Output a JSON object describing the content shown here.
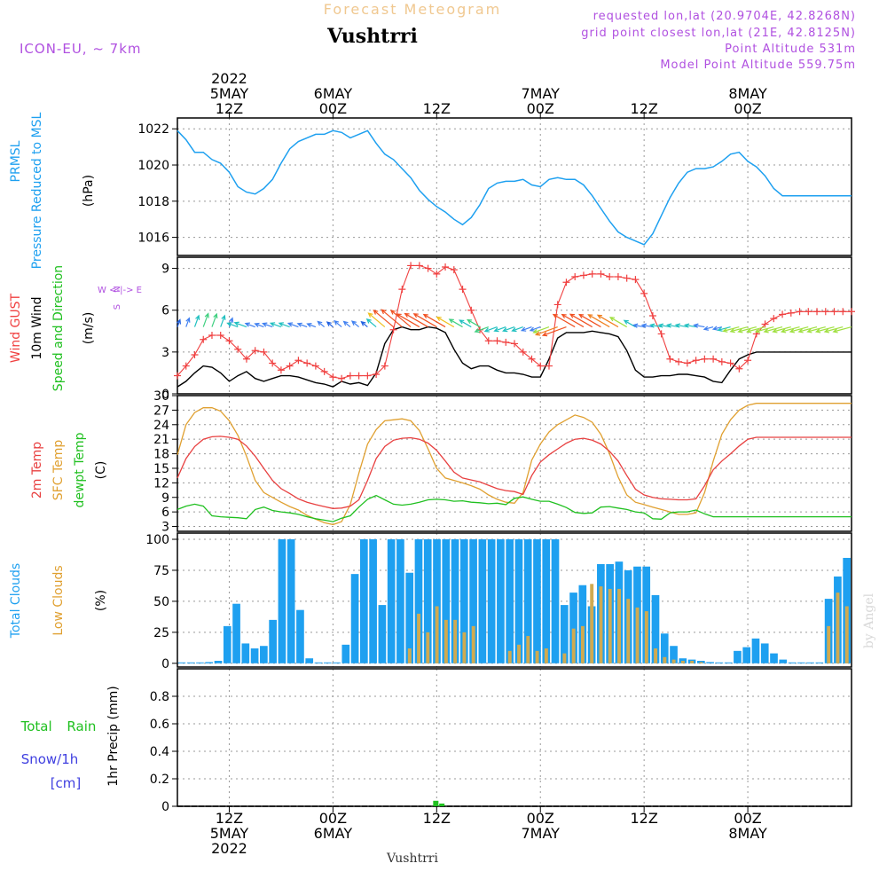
{
  "header": {
    "product_title": "Forecast Meteogram",
    "location": "Vushtrri",
    "model": "ICON-EU, ~ 7km",
    "requested": "requested lon,lat (20.9704E, 42.8268N)",
    "grid_point": "grid point closest lon,lat (21E, 42.8125N)",
    "point_altitude": "Point Altitude 531m",
    "model_altitude": "Model Point Altitude 559.75m",
    "footer_location": "Vushtrri",
    "watermark": "by Angel"
  },
  "colors": {
    "pressure": "#1ea0f0",
    "gust": "#f04040",
    "wind": "#000000",
    "temp": "#e84040",
    "sfc": "#e0a030",
    "dew": "#20c020",
    "total_cloud": "#1ea0f0",
    "low_cloud": "#d0aa50",
    "rain": "#20c020",
    "snow": "#4040e0",
    "meta": "#b050e0",
    "title_faded": "#f0c890"
  },
  "time_axis": {
    "top": [
      {
        "h": 12,
        "lines": [
          "2022",
          "5MAY",
          "12Z"
        ]
      },
      {
        "h": 24,
        "lines": [
          "6MAY",
          "00Z"
        ]
      },
      {
        "h": 36,
        "lines": [
          "12Z"
        ]
      },
      {
        "h": 48,
        "lines": [
          "7MAY",
          "00Z"
        ]
      },
      {
        "h": 60,
        "lines": [
          "12Z"
        ]
      },
      {
        "h": 72,
        "lines": [
          "8MAY",
          "00Z"
        ]
      }
    ],
    "bottom": [
      {
        "h": 12,
        "lines": [
          "12Z",
          "5MAY",
          "2022"
        ]
      },
      {
        "h": 24,
        "lines": [
          "00Z",
          "6MAY"
        ]
      },
      {
        "h": 36,
        "lines": [
          "12Z"
        ]
      },
      {
        "h": 48,
        "lines": [
          "00Z",
          "7MAY"
        ]
      },
      {
        "h": 60,
        "lines": [
          "12Z"
        ]
      },
      {
        "h": 72,
        "lines": [
          "00Z",
          "8MAY"
        ]
      }
    ]
  },
  "chart_data": [
    {
      "type": "line",
      "name": "pressure",
      "ylabels": [
        "PRMSL",
        "Pressure Reduced to MSL",
        "(hPa)"
      ],
      "ylim": [
        1015,
        1022.6
      ],
      "yticks": [
        1016,
        1018,
        1020,
        1022
      ],
      "x": [
        6,
        7,
        8,
        9,
        10,
        11,
        12,
        13,
        14,
        15,
        16,
        17,
        18,
        19,
        20,
        21,
        22,
        23,
        24,
        25,
        26,
        27,
        28,
        29,
        30,
        31,
        32,
        33,
        34,
        35,
        36,
        37,
        38,
        39,
        40,
        41,
        42,
        43,
        44,
        45,
        46,
        47,
        48,
        49,
        50,
        51,
        52,
        53,
        54,
        55,
        56,
        57,
        58,
        59,
        60,
        61,
        62,
        63,
        64,
        65,
        66,
        67,
        68,
        69,
        70,
        71,
        72,
        73,
        74,
        75,
        76,
        77,
        78,
        79,
        80,
        81,
        82,
        83,
        84
      ],
      "values": [
        1021.9,
        1021.4,
        1020.7,
        1020.7,
        1020.3,
        1020.1,
        1019.6,
        1018.8,
        1018.5,
        1018.4,
        1018.7,
        1019.2,
        1020.1,
        1020.9,
        1021.3,
        1021.5,
        1021.7,
        1021.7,
        1021.9,
        1021.8,
        1021.5,
        1021.7,
        1021.9,
        1021.2,
        1020.6,
        1020.3,
        1019.8,
        1019.3,
        1018.6,
        1018.1,
        1017.7,
        1017.4,
        1017.0,
        1016.7,
        1017.1,
        1017.8,
        1018.7,
        1019.0,
        1019.1,
        1019.1,
        1019.2,
        1018.9,
        1018.8,
        1019.2,
        1019.3,
        1019.2,
        1019.2,
        1018.9,
        1018.3,
        1017.6,
        1016.9,
        1016.3,
        1016.0,
        1015.8,
        1015.6,
        1016.2,
        1017.2,
        1018.2,
        1019.0,
        1019.6,
        1019.8,
        1019.8,
        1019.9,
        1020.2,
        1020.6,
        1020.7,
        1020.2,
        1019.9,
        1019.4,
        1018.7,
        1018.3,
        1018.3,
        1018.3,
        1018.3,
        1018.3,
        1018.3,
        1018.3,
        1018.3,
        1018.3
      ]
    },
    {
      "type": "line",
      "name": "wind",
      "ylabels": [
        "Wind GUST",
        "10m Wind",
        "Speed and Direction",
        "(m/s)"
      ],
      "compass": [
        "N",
        "W <-|-> E",
        "S"
      ],
      "ylim": [
        0,
        9.8
      ],
      "yticks": [
        0,
        3,
        6,
        9
      ],
      "series": [
        {
          "name": "gust",
          "values": [
            1.3,
            2.0,
            2.8,
            3.9,
            4.2,
            4.2,
            3.8,
            3.2,
            2.5,
            3.1,
            3.0,
            2.2,
            1.7,
            2.0,
            2.4,
            2.2,
            2.0,
            1.6,
            1.2,
            1.1,
            1.3,
            1.3,
            1.3,
            1.4,
            2.0,
            4.6,
            7.5,
            9.2,
            9.2,
            9.0,
            8.6,
            9.1,
            8.9,
            7.5,
            6.0,
            4.6,
            3.8,
            3.8,
            3.7,
            3.6,
            3.0,
            2.5,
            2.0,
            2.0,
            6.4,
            8.0,
            8.4,
            8.5,
            8.6,
            8.6,
            8.4,
            8.4,
            8.3,
            8.2,
            7.2,
            5.6,
            4.3,
            2.5,
            2.3,
            2.2,
            2.4,
            2.5,
            2.5,
            2.3,
            2.2,
            1.8,
            2.4,
            4.3,
            5.0,
            5.4,
            5.7,
            5.8,
            5.9,
            5.9,
            5.9,
            5.9,
            5.9,
            5.9,
            5.9
          ]
        },
        {
          "name": "wind10m",
          "values": [
            0.5,
            0.9,
            1.5,
            2.0,
            1.9,
            1.5,
            0.9,
            1.3,
            1.6,
            1.1,
            0.9,
            1.1,
            1.3,
            1.3,
            1.2,
            1.0,
            0.8,
            0.7,
            0.5,
            0.9,
            0.7,
            0.8,
            0.6,
            1.5,
            3.6,
            4.6,
            4.8,
            4.6,
            4.6,
            4.8,
            4.7,
            4.4,
            3.2,
            2.2,
            1.8,
            2.0,
            2.0,
            1.7,
            1.5,
            1.5,
            1.4,
            1.2,
            1.2,
            2.5,
            4.0,
            4.4,
            4.4,
            4.4,
            4.5,
            4.4,
            4.3,
            4.1,
            3.1,
            1.7,
            1.2,
            1.2,
            1.3,
            1.3,
            1.4,
            1.4,
            1.3,
            1.2,
            0.9,
            0.8,
            1.7,
            2.5,
            2.8,
            3.0,
            3.0,
            3.0,
            3.0,
            3.0,
            3.0,
            3.0,
            3.0,
            3.0,
            3.0,
            3.0,
            3.0
          ]
        }
      ]
    },
    {
      "type": "line",
      "name": "temperature",
      "ylabels": [
        "2m Temp",
        "SFC Temp",
        "dewpt Temp",
        "(C)"
      ],
      "ylim": [
        2,
        30
      ],
      "yticks": [
        3,
        6,
        9,
        12,
        15,
        18,
        21,
        24,
        27,
        30
      ],
      "series": [
        {
          "name": "t2m",
          "values": [
            13.0,
            17.0,
            19.5,
            21.0,
            21.5,
            21.6,
            21.4,
            21.0,
            19.6,
            17.5,
            15.0,
            12.5,
            10.8,
            9.8,
            8.7,
            8.0,
            7.5,
            7.1,
            6.7,
            6.8,
            7.2,
            8.5,
            12.5,
            17.0,
            19.5,
            20.8,
            21.2,
            21.3,
            21.0,
            20.2,
            18.7,
            16.5,
            14.2,
            13.0,
            12.6,
            12.2,
            11.5,
            10.8,
            10.4,
            10.2,
            9.6,
            13.5,
            16.3,
            17.8,
            19.0,
            20.2,
            21.0,
            21.2,
            20.8,
            20.0,
            18.5,
            16.5,
            13.5,
            10.7,
            9.5,
            9.0,
            8.7,
            8.6,
            8.5,
            8.5,
            8.7,
            11.4,
            14.7,
            16.5,
            18.0,
            19.6,
            21.0,
            21.4,
            21.4,
            21.4,
            21.4,
            21.4,
            21.4,
            21.4,
            21.4,
            21.4,
            21.4,
            21.4,
            21.4
          ]
        },
        {
          "name": "sfc",
          "values": [
            17.8,
            24.0,
            26.5,
            27.5,
            27.5,
            26.8,
            24.8,
            21.8,
            17.5,
            12.5,
            10.0,
            9.0,
            8.0,
            7.1,
            6.4,
            5.3,
            4.5,
            3.8,
            3.4,
            4.0,
            7.5,
            14.0,
            20.0,
            23.0,
            24.8,
            25.0,
            25.2,
            24.8,
            22.8,
            19.0,
            15.0,
            13.0,
            12.5,
            12.0,
            11.4,
            10.7,
            9.5,
            8.6,
            8.0,
            7.8,
            10.0,
            16.7,
            20.0,
            22.5,
            24.0,
            25.0,
            26.0,
            25.5,
            24.5,
            22.0,
            18.0,
            13.2,
            9.5,
            8.0,
            7.5,
            7.0,
            6.5,
            6.0,
            5.5,
            5.5,
            5.8,
            10.0,
            16.5,
            22.0,
            25.0,
            27.0,
            28.0,
            28.4,
            28.4,
            28.4,
            28.4,
            28.4,
            28.4,
            28.4,
            28.4,
            28.4,
            28.4,
            28.4,
            28.4
          ]
        },
        {
          "name": "dewpt",
          "values": [
            6.5,
            7.2,
            7.6,
            7.2,
            5.2,
            5.0,
            4.9,
            4.8,
            4.6,
            6.5,
            7.0,
            6.3,
            6.0,
            5.8,
            5.5,
            5.0,
            4.6,
            4.3,
            4.0,
            4.7,
            5.2,
            7.0,
            8.6,
            9.4,
            8.5,
            7.6,
            7.4,
            7.6,
            8.0,
            8.5,
            8.6,
            8.5,
            8.2,
            8.3,
            8.0,
            7.9,
            7.7,
            7.8,
            7.5,
            8.8,
            9.1,
            8.6,
            8.2,
            8.2,
            7.6,
            6.9,
            5.9,
            5.7,
            5.8,
            7.0,
            7.1,
            6.8,
            6.5,
            6.0,
            5.8,
            4.6,
            4.5,
            5.8,
            6.0,
            6.0,
            6.4,
            5.6,
            5.0,
            5.0,
            5.0,
            5.0,
            5.0,
            5.0,
            5.0,
            5.0,
            5.0,
            5.0,
            5.0,
            5.0,
            5.0,
            5.0,
            5.0,
            5.0,
            5.0
          ]
        }
      ]
    },
    {
      "type": "bar",
      "name": "clouds",
      "ylabels": [
        "Total Clouds",
        "Low Clouds",
        "(%)"
      ],
      "ylim": [
        -3,
        105
      ],
      "yticks": [
        0,
        25,
        50,
        75,
        100
      ],
      "series": [
        {
          "name": "total",
          "values": [
            0,
            0,
            0,
            1,
            2,
            30,
            48,
            16,
            12,
            14,
            35,
            100,
            100,
            43,
            4,
            0,
            0,
            0,
            15,
            72,
            100,
            100,
            47,
            100,
            100,
            73,
            100,
            100,
            100,
            100,
            100,
            100,
            100,
            100,
            100,
            100,
            100,
            100,
            100,
            100,
            100,
            100,
            47,
            57,
            63,
            46,
            80,
            80,
            82,
            75,
            78,
            78,
            55,
            24,
            14,
            4,
            3,
            2,
            1,
            0,
            0,
            10,
            13,
            20,
            16,
            8,
            3,
            0,
            0,
            0,
            0,
            52,
            70,
            85
          ]
        },
        {
          "name": "low",
          "values": [
            0,
            0,
            0,
            0,
            0,
            0,
            0,
            0,
            0,
            0,
            0,
            0,
            0,
            0,
            0,
            0,
            0,
            0,
            0,
            0,
            0,
            0,
            0,
            0,
            0,
            12,
            40,
            25,
            46,
            35,
            35,
            25,
            30,
            0,
            0,
            0,
            10,
            15,
            22,
            10,
            12,
            0,
            8,
            28,
            30,
            64,
            62,
            60,
            60,
            52,
            45,
            42,
            12,
            5,
            3,
            2,
            2,
            1,
            0,
            0,
            0,
            0,
            0,
            0,
            0,
            0,
            0,
            0,
            0,
            0,
            0,
            30,
            57,
            46
          ]
        }
      ]
    },
    {
      "type": "bar",
      "name": "precipitation",
      "ylabels": [
        "Total Rain",
        "Snow/1h",
        "[cm]",
        "1hr Precip (mm)"
      ],
      "ylim": [
        0,
        1.0
      ],
      "yticks": [
        0,
        0.2,
        0.4,
        0.6,
        0.8
      ],
      "bars": [
        {
          "h": 35.9,
          "value": 0.04
        },
        {
          "h": 36.6,
          "value": 0.02
        }
      ]
    }
  ]
}
